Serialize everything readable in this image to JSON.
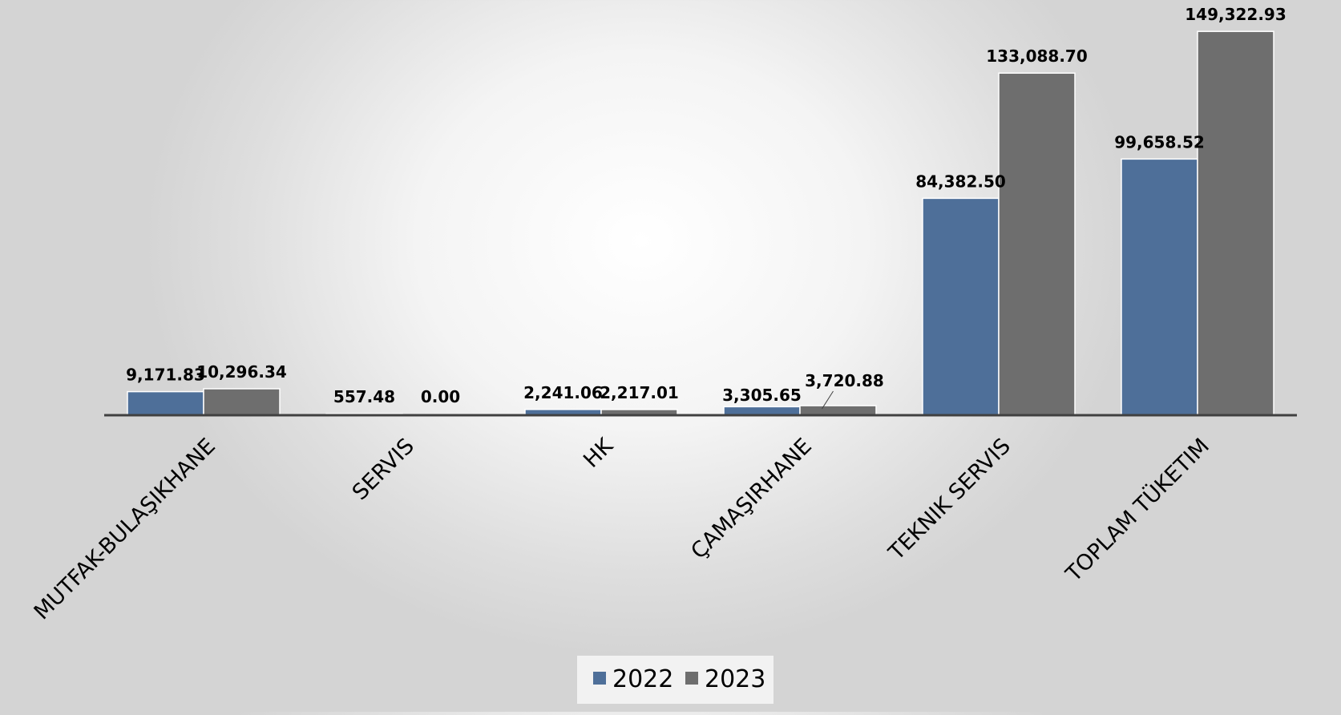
{
  "chart_data": {
    "type": "bar",
    "categories": [
      "MUTFAK-BULAŞIKHANE",
      "SERVIS",
      "HK",
      "ÇAMAŞIRHANE",
      "TEKNIK SERVIS",
      "TOPLAM TÜKETIM"
    ],
    "series": [
      {
        "name": "2022",
        "color": "#4e6f99",
        "values": [
          9171.83,
          557.48,
          2241.06,
          3305.65,
          84382.5,
          99658.52
        ],
        "labels": [
          "9,171.83",
          "557.48",
          "2,241.06",
          "3,305.65",
          "84,382.50",
          "99,658.52"
        ]
      },
      {
        "name": "2023",
        "color": "#6e6e6e",
        "values": [
          10296.34,
          0.0,
          2217.01,
          3720.88,
          133088.7,
          149322.93
        ],
        "labels": [
          "10,296.34",
          "0.00",
          "2,217.01",
          "3,720.88",
          "133,088.70",
          "149,322.93"
        ]
      }
    ],
    "title": "",
    "xlabel": "",
    "ylabel": "",
    "ylim": [
      0,
      150000
    ],
    "grid": false,
    "legend": "bottom"
  }
}
